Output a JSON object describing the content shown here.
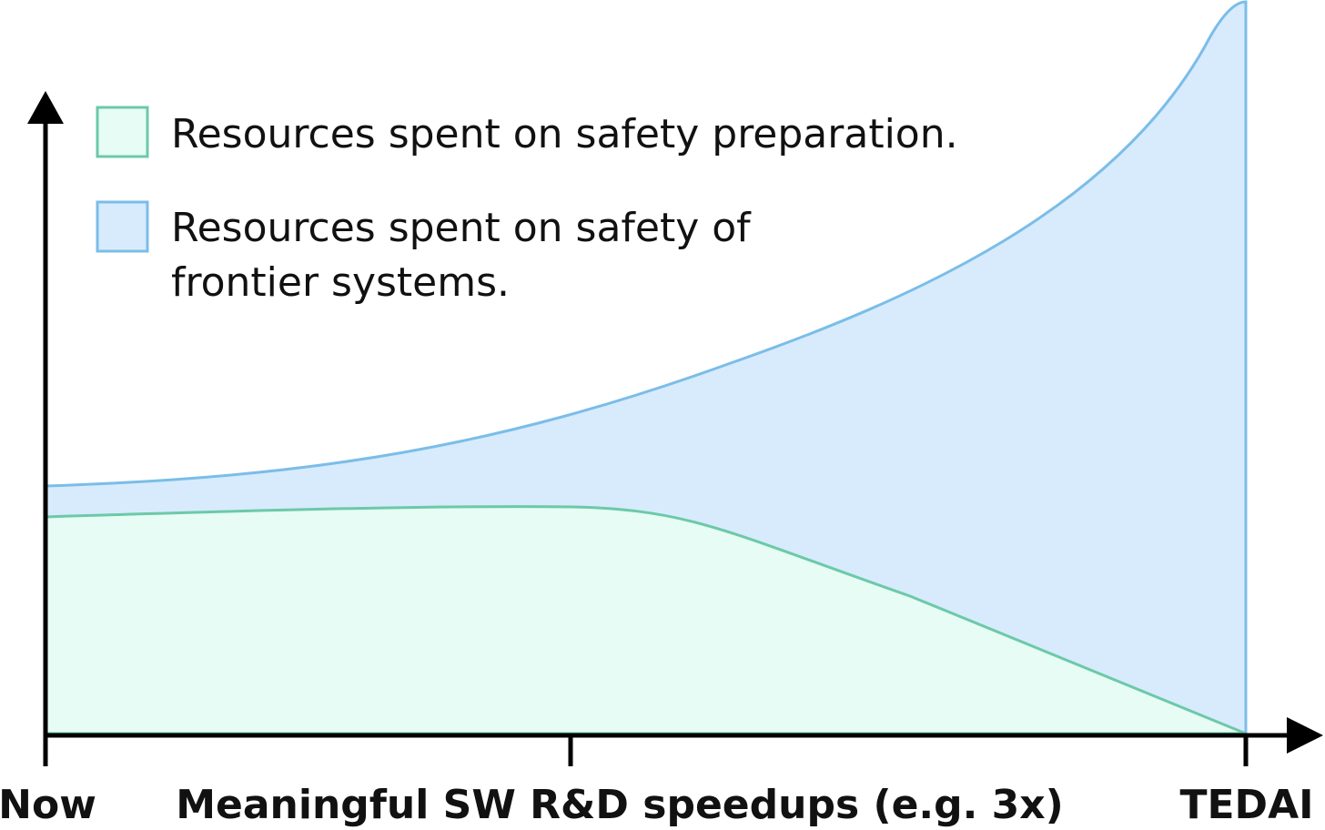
{
  "legend": {
    "items": [
      {
        "lines": [
          "Resources spent on safety preparation."
        ]
      },
      {
        "lines": [
          "Resources spent on safety of",
          "frontier systems."
        ]
      }
    ]
  },
  "x_axis": {
    "labels": [
      "Now",
      "Meaningful SW R&D speedups (e.g. 3x)",
      "TEDAI"
    ]
  }
}
